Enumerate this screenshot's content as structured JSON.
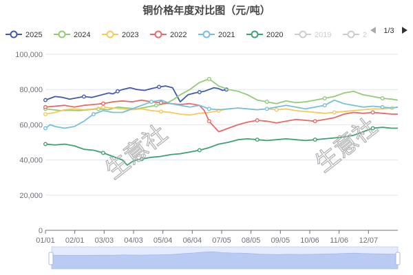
{
  "chart_data": {
    "type": "line",
    "title": "铜价格年度对比图（元/吨）",
    "categories": [
      "01/01",
      "02/01",
      "03/03",
      "04/03",
      "05/04",
      "06/04",
      "07/05",
      "08/05",
      "09/05",
      "10/06",
      "11/06",
      "12/07"
    ],
    "ylim": [
      0,
      100000
    ],
    "y_ticks": [
      "0",
      "20,000",
      "40,000",
      "60,000",
      "80,000",
      "100,000"
    ],
    "grid": true,
    "legend_position": "top",
    "legend_page": "1/3",
    "series": [
      {
        "name": "2025",
        "color": "#4059ad",
        "active": true,
        "x": [
          0,
          5,
          10,
          18,
          25,
          32,
          40,
          48,
          55,
          62,
          66,
          70,
          75,
          80,
          88,
          95,
          103,
          110,
          118,
          125,
          132,
          140,
          148,
          155,
          160,
          165,
          170,
          175,
          180,
          184,
          188
        ],
        "values": [
          74000,
          75000,
          76000,
          75500,
          74500,
          75200,
          76000,
          75500,
          76500,
          77500,
          78000,
          77500,
          79000,
          80000,
          81000,
          80000,
          79500,
          80500,
          81500,
          82000,
          81000,
          73000,
          77000,
          78000,
          78500,
          79000,
          80000,
          81000,
          80500,
          79500,
          80000
        ]
      },
      {
        "name": "2024",
        "color": "#91cc75",
        "active": true,
        "x": [
          0,
          8,
          16,
          25,
          35,
          45,
          55,
          65,
          75,
          85,
          95,
          105,
          115,
          125,
          132,
          140,
          150,
          160,
          170,
          180,
          190,
          200,
          210,
          220,
          230,
          240,
          250,
          260,
          270,
          280,
          290,
          300,
          310,
          320,
          330,
          340,
          350,
          360,
          366
        ],
        "values": [
          69000,
          68500,
          68000,
          68200,
          68000,
          68500,
          69000,
          68500,
          70000,
          69500,
          69000,
          70000,
          71000,
          72000,
          74000,
          77000,
          80000,
          84000,
          86000,
          82000,
          80000,
          79000,
          77000,
          74000,
          73000,
          72000,
          73500,
          72500,
          73000,
          74000,
          75000,
          76000,
          78000,
          79000,
          77000,
          76000,
          75000,
          74500,
          74000
        ]
      },
      {
        "name": "2023",
        "color": "#fac858",
        "active": true,
        "x": [
          0,
          10,
          20,
          30,
          40,
          50,
          60,
          70,
          80,
          90,
          100,
          110,
          120,
          130,
          140,
          150,
          160,
          170,
          180,
          190,
          200,
          210,
          220,
          230,
          240,
          250,
          260,
          270,
          280,
          290,
          300,
          310,
          320,
          330,
          340,
          350,
          360,
          366
        ],
        "values": [
          66000,
          67000,
          68500,
          69000,
          68500,
          69000,
          70000,
          69500,
          69000,
          68500,
          69000,
          68000,
          67500,
          67000,
          66000,
          65500,
          66500,
          67000,
          68000,
          69000,
          69500,
          69000,
          68500,
          69000,
          68500,
          69000,
          68000,
          67500,
          67000,
          66500,
          67000,
          67500,
          68000,
          68500,
          69000,
          69000,
          69500,
          70000
        ]
      },
      {
        "name": "2022",
        "color": "#ee6666",
        "active": true,
        "x": [
          0,
          10,
          20,
          30,
          40,
          50,
          60,
          70,
          80,
          90,
          100,
          110,
          120,
          130,
          140,
          150,
          160,
          165,
          170,
          175,
          180,
          190,
          200,
          210,
          220,
          230,
          240,
          250,
          260,
          270,
          280,
          290,
          300,
          310,
          320,
          330,
          340,
          350,
          360,
          366
        ],
        "values": [
          70000,
          70500,
          71000,
          70000,
          71000,
          71500,
          72000,
          73000,
          73500,
          73000,
          74000,
          73000,
          72500,
          72000,
          71500,
          72000,
          71000,
          68000,
          62000,
          59000,
          56000,
          58000,
          60000,
          61500,
          62500,
          62000,
          61000,
          62000,
          63000,
          62500,
          62000,
          63000,
          64000,
          66000,
          67000,
          66500,
          67000,
          66500,
          66000,
          66000
        ]
      },
      {
        "name": "2021",
        "color": "#73c0de",
        "active": true,
        "x": [
          0,
          5,
          10,
          20,
          30,
          40,
          50,
          60,
          70,
          80,
          90,
          100,
          110,
          120,
          130,
          140,
          150,
          160,
          170,
          180,
          190,
          200,
          210,
          220,
          230,
          240,
          250,
          260,
          270,
          280,
          290,
          300,
          310,
          320,
          330,
          340,
          350,
          360,
          366
        ],
        "values": [
          58000,
          60000,
          59000,
          58000,
          59000,
          62000,
          66000,
          68000,
          67000,
          67000,
          69000,
          71000,
          73000,
          74000,
          72000,
          71000,
          70000,
          71000,
          69000,
          68500,
          69000,
          69500,
          69000,
          68500,
          69000,
          70000,
          71000,
          70000,
          69000,
          70000,
          71000,
          74000,
          72000,
          71000,
          70000,
          70500,
          70000,
          69500,
          70000
        ]
      },
      {
        "name": "2020",
        "color": "#3ba272",
        "active": true,
        "x": [
          0,
          10,
          20,
          30,
          40,
          50,
          60,
          70,
          80,
          85,
          90,
          95,
          100,
          110,
          120,
          130,
          140,
          150,
          160,
          170,
          180,
          190,
          200,
          210,
          220,
          230,
          240,
          250,
          260,
          270,
          280,
          290,
          300,
          310,
          320,
          330,
          340,
          350,
          360,
          366
        ],
        "values": [
          49000,
          48500,
          49000,
          48000,
          46000,
          45500,
          44000,
          42000,
          40000,
          37000,
          39000,
          40000,
          40500,
          41500,
          42000,
          43000,
          43500,
          44500,
          45500,
          47000,
          49000,
          50000,
          51500,
          52000,
          51500,
          51000,
          51500,
          52000,
          51500,
          51000,
          51500,
          52000,
          52500,
          53000,
          54000,
          56000,
          58000,
          58500,
          58000,
          58000
        ]
      },
      {
        "name": "2019",
        "color": "#cccccc",
        "active": false,
        "x": [],
        "values": []
      },
      {
        "name": "2",
        "color": "#cccccc",
        "active": false,
        "x": [],
        "values": []
      }
    ],
    "watermark": "生意社"
  }
}
